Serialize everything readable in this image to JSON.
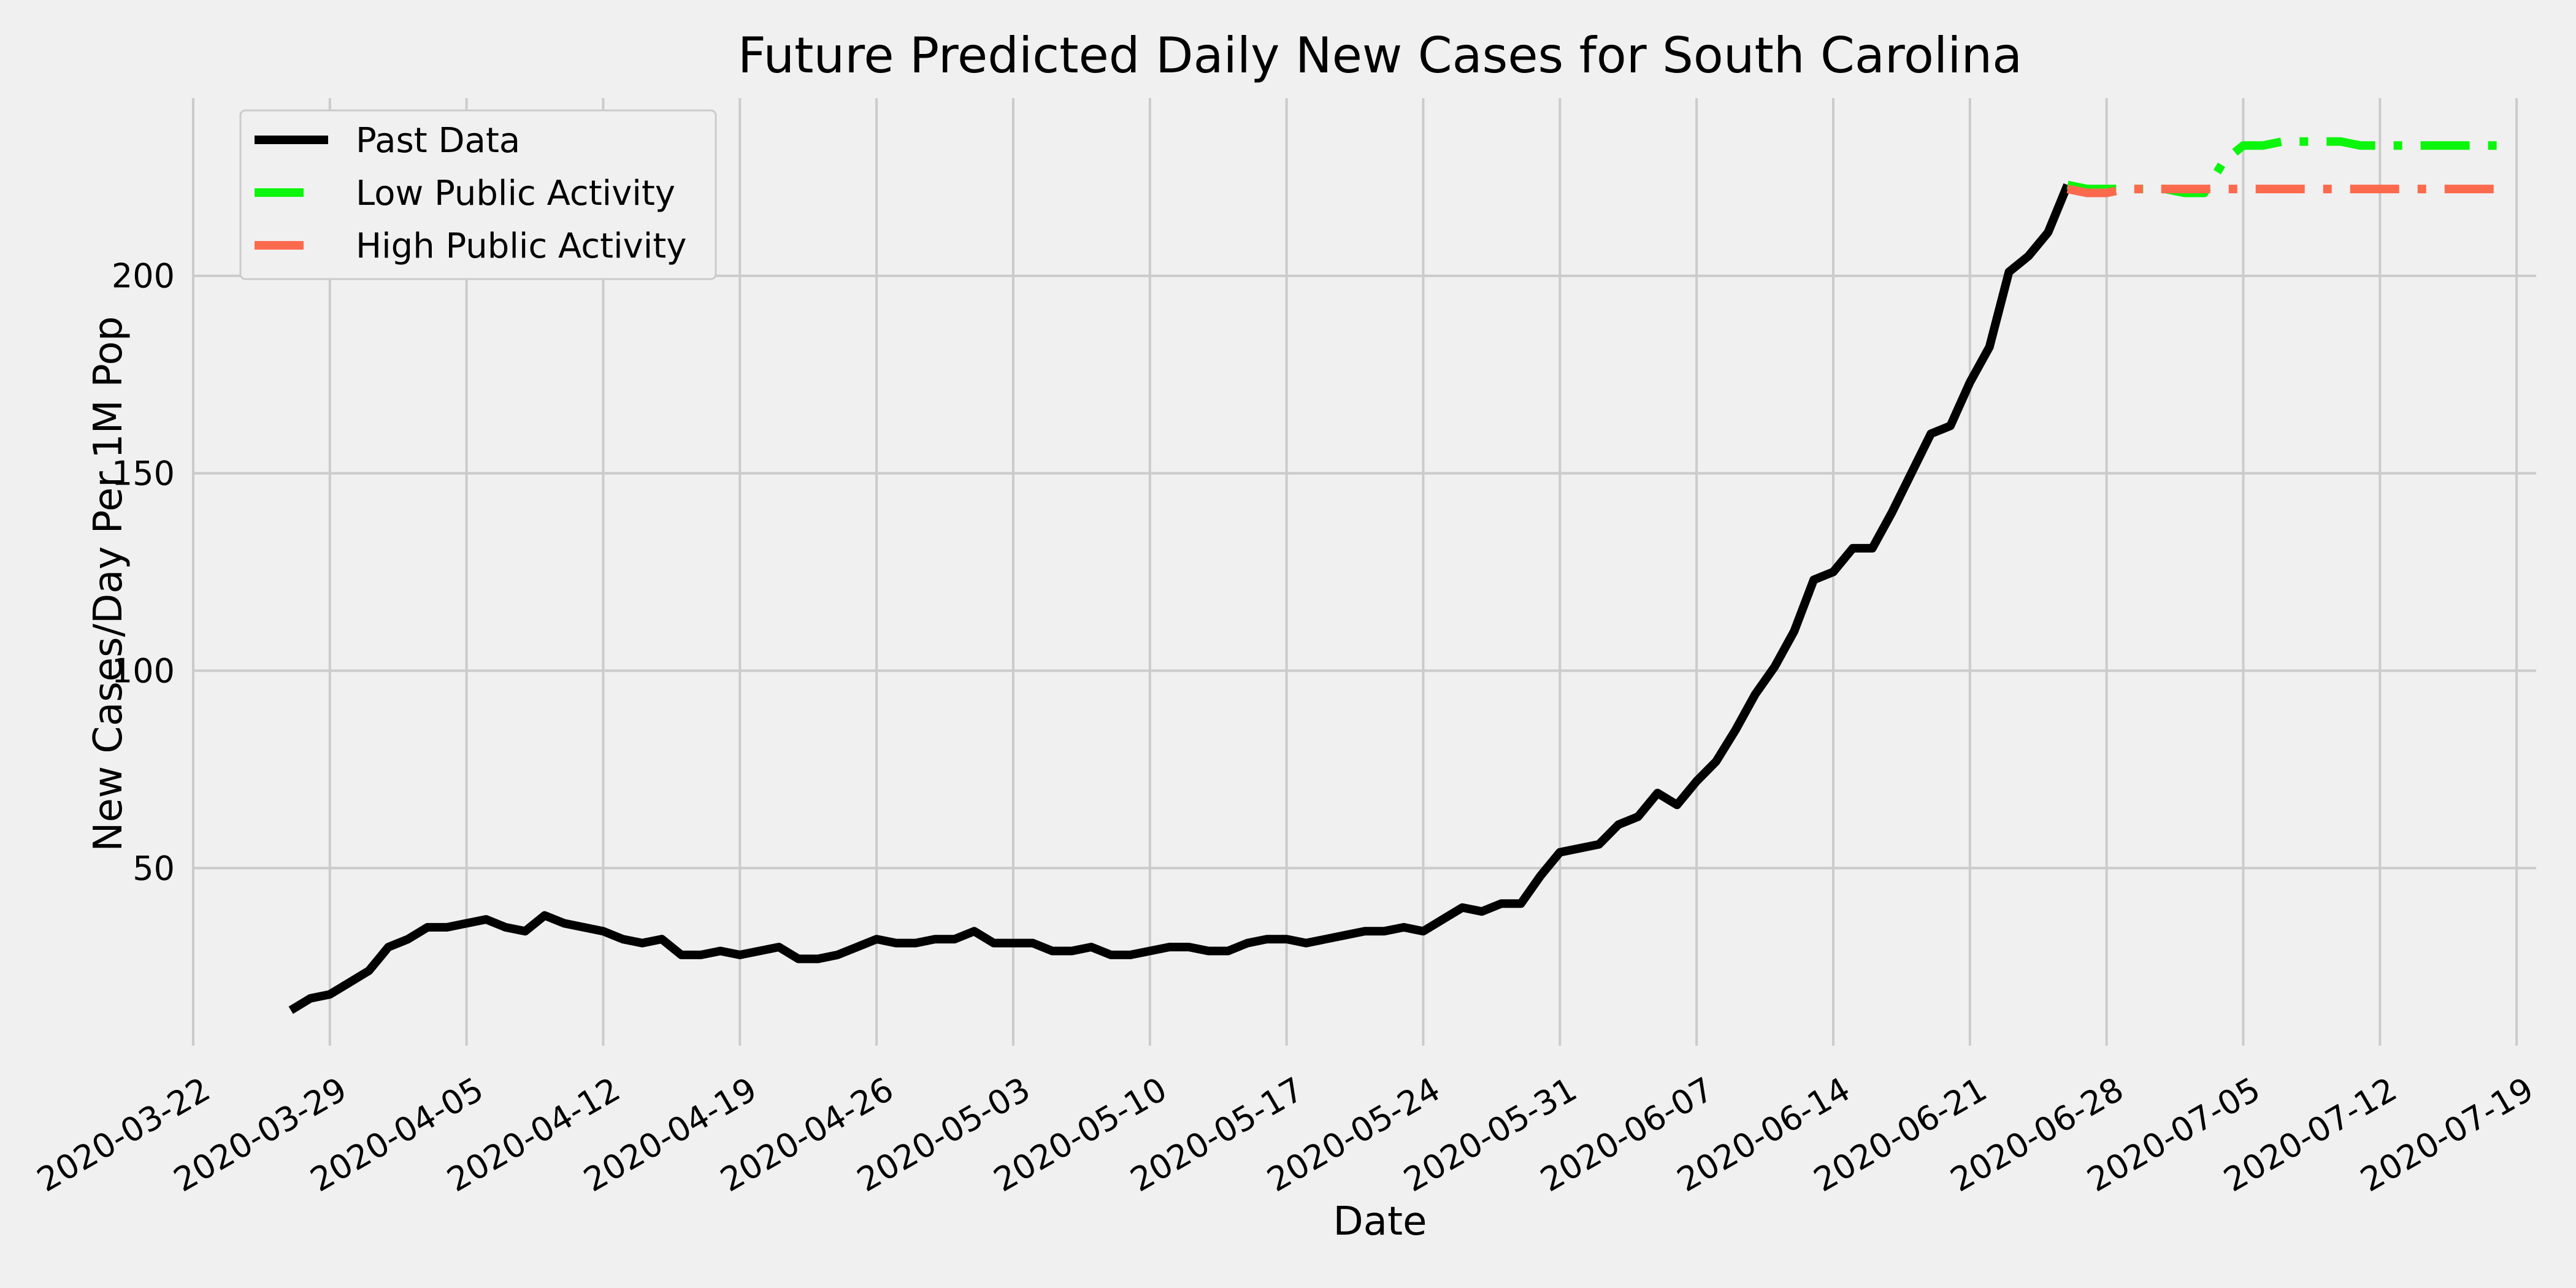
{
  "chart_data": {
    "type": "line",
    "title": "Future Predicted Daily New Cases for South Carolina",
    "xlabel": "Date",
    "ylabel": "New Cases/Day Per 1M Pop",
    "x_axis": "date",
    "xlim": [
      "2020-03-22",
      "2020-07-20"
    ],
    "ylim": [
      5,
      245
    ],
    "x_ticks": [
      "2020-03-22",
      "2020-03-29",
      "2020-04-05",
      "2020-04-12",
      "2020-04-19",
      "2020-04-26",
      "2020-05-03",
      "2020-05-10",
      "2020-05-17",
      "2020-05-24",
      "2020-05-31",
      "2020-06-07",
      "2020-06-14",
      "2020-06-21",
      "2020-06-28",
      "2020-07-05",
      "2020-07-12",
      "2020-07-19"
    ],
    "y_ticks": [
      50,
      100,
      150,
      200
    ],
    "grid": true,
    "legend_position": "top-left",
    "series": [
      {
        "name": "Past Data",
        "color": "#000000",
        "style": "solid",
        "x": [
          "2020-03-27",
          "2020-03-28",
          "2020-03-29",
          "2020-03-30",
          "2020-03-31",
          "2020-04-01",
          "2020-04-02",
          "2020-04-03",
          "2020-04-04",
          "2020-04-05",
          "2020-04-06",
          "2020-04-07",
          "2020-04-08",
          "2020-04-09",
          "2020-04-10",
          "2020-04-11",
          "2020-04-12",
          "2020-04-13",
          "2020-04-14",
          "2020-04-15",
          "2020-04-16",
          "2020-04-17",
          "2020-04-18",
          "2020-04-19",
          "2020-04-20",
          "2020-04-21",
          "2020-04-22",
          "2020-04-23",
          "2020-04-24",
          "2020-04-25",
          "2020-04-26",
          "2020-04-27",
          "2020-04-28",
          "2020-04-29",
          "2020-04-30",
          "2020-05-01",
          "2020-05-02",
          "2020-05-03",
          "2020-05-04",
          "2020-05-05",
          "2020-05-06",
          "2020-05-07",
          "2020-05-08",
          "2020-05-09",
          "2020-05-10",
          "2020-05-11",
          "2020-05-12",
          "2020-05-13",
          "2020-05-14",
          "2020-05-15",
          "2020-05-16",
          "2020-05-17",
          "2020-05-18",
          "2020-05-19",
          "2020-05-20",
          "2020-05-21",
          "2020-05-22",
          "2020-05-23",
          "2020-05-24",
          "2020-05-25",
          "2020-05-26",
          "2020-05-27",
          "2020-05-28",
          "2020-05-29",
          "2020-05-30",
          "2020-05-31",
          "2020-06-01",
          "2020-06-02",
          "2020-06-03",
          "2020-06-04",
          "2020-06-05",
          "2020-06-06",
          "2020-06-07",
          "2020-06-08",
          "2020-06-09",
          "2020-06-10",
          "2020-06-11",
          "2020-06-12",
          "2020-06-13",
          "2020-06-14",
          "2020-06-15",
          "2020-06-16",
          "2020-06-17",
          "2020-06-18",
          "2020-06-19",
          "2020-06-20",
          "2020-06-21",
          "2020-06-22",
          "2020-06-23",
          "2020-06-24",
          "2020-06-25",
          "2020-06-26"
        ],
        "y": [
          14,
          17,
          18,
          21,
          24,
          30,
          32,
          35,
          35,
          36,
          37,
          35,
          34,
          38,
          36,
          35,
          34,
          32,
          31,
          32,
          28,
          28,
          29,
          28,
          29,
          30,
          27,
          27,
          28,
          30,
          32,
          31,
          31,
          32,
          32,
          34,
          31,
          31,
          31,
          29,
          29,
          30,
          28,
          28,
          29,
          30,
          30,
          29,
          29,
          31,
          32,
          32,
          31,
          32,
          33,
          34,
          34,
          35,
          34,
          37,
          40,
          39,
          41,
          41,
          48,
          54,
          55,
          56,
          61,
          63,
          69,
          66,
          72,
          77,
          85,
          94,
          101,
          110,
          123,
          125,
          131,
          131,
          140,
          150,
          160,
          162,
          173,
          182,
          201,
          205,
          211,
          223
        ]
      },
      {
        "name": "Low Public Activity",
        "color": "#0cf50c",
        "style": "dashdot",
        "x": [
          "2020-06-26",
          "2020-06-27",
          "2020-06-28",
          "2020-06-29",
          "2020-06-30",
          "2020-07-01",
          "2020-07-02",
          "2020-07-03",
          "2020-07-04",
          "2020-07-05",
          "2020-07-06",
          "2020-07-07",
          "2020-07-08",
          "2020-07-09",
          "2020-07-10",
          "2020-07-11",
          "2020-07-12",
          "2020-07-13",
          "2020-07-14",
          "2020-07-15",
          "2020-07-16",
          "2020-07-17",
          "2020-07-18"
        ],
        "y": [
          223,
          222,
          222,
          222,
          222,
          222,
          221,
          221,
          229,
          233,
          233,
          234,
          234,
          234,
          234,
          233,
          233,
          233,
          233,
          233,
          233,
          233,
          233
        ]
      },
      {
        "name": "High Public Activity",
        "color": "#fc6a4d",
        "style": "dashdot",
        "x": [
          "2020-06-26",
          "2020-06-27",
          "2020-06-28",
          "2020-06-29",
          "2020-06-30",
          "2020-07-01",
          "2020-07-02",
          "2020-07-03",
          "2020-07-04",
          "2020-07-05",
          "2020-07-06",
          "2020-07-07",
          "2020-07-08",
          "2020-07-09",
          "2020-07-10",
          "2020-07-11",
          "2020-07-12",
          "2020-07-13",
          "2020-07-14",
          "2020-07-15",
          "2020-07-16",
          "2020-07-17",
          "2020-07-18"
        ],
        "y": [
          222,
          221,
          221,
          222,
          222,
          222,
          222,
          222,
          222,
          222,
          222,
          222,
          222,
          222,
          222,
          222,
          222,
          222,
          222,
          222,
          222,
          222,
          222
        ]
      }
    ]
  }
}
